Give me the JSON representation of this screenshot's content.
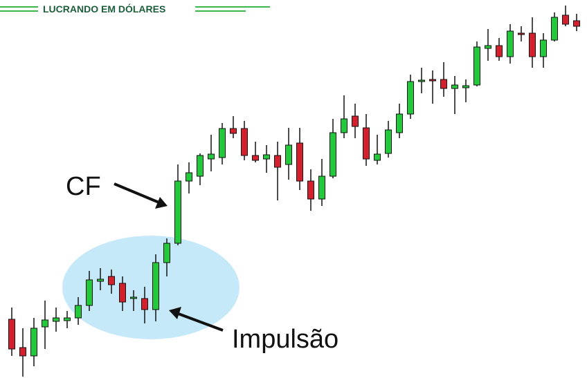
{
  "brand": "LUCRANDO EM DÓLARES",
  "annotations": {
    "cf": "CF",
    "impulse": "Impulsão"
  },
  "chart_data": {
    "type": "candlestick",
    "up_color": "#22c93a",
    "down_color": "#d4202c",
    "ylim": [
      0,
      547
    ],
    "open": [
      85,
      44,
      32,
      74,
      82,
      83,
      87,
      105,
      140,
      147,
      137,
      115,
      115,
      99,
      167,
      195,
      285,
      292,
      317,
      319,
      361,
      361,
      322,
      317,
      322,
      309,
      340,
      285,
      259,
      292,
      355,
      379,
      362,
      315,
      325,
      355,
      382,
      429,
      432,
      432,
      419,
      420,
      424,
      477,
      481,
      465,
      499,
      499,
      465,
      489,
      525,
      517
    ],
    "high": [
      102,
      72,
      87,
      112,
      102,
      97,
      117,
      155,
      159,
      157,
      147,
      127,
      132,
      179,
      202,
      309,
      312,
      325,
      352,
      369,
      379,
      372,
      342,
      337,
      342,
      362,
      362,
      302,
      317,
      375,
      409,
      397,
      382,
      352,
      372,
      397,
      439,
      449,
      445,
      457,
      437,
      432,
      487,
      505,
      492,
      512,
      509,
      522,
      499,
      529,
      539,
      527
    ],
    "low": [
      32,
      2,
      17,
      42,
      67,
      72,
      77,
      97,
      127,
      122,
      97,
      97,
      79,
      82,
      147,
      192,
      267,
      279,
      299,
      309,
      347,
      315,
      312,
      297,
      257,
      287,
      272,
      242,
      249,
      289,
      347,
      347,
      307,
      309,
      319,
      347,
      375,
      412,
      397,
      407,
      382,
      399,
      422,
      459,
      459,
      455,
      487,
      449,
      449,
      487,
      509,
      502
    ],
    "close": [
      42,
      32,
      72,
      84,
      87,
      87,
      105,
      142,
      143,
      135,
      110,
      117,
      99,
      167,
      195,
      285,
      297,
      322,
      324,
      361,
      354,
      322,
      315,
      323,
      305,
      337,
      285,
      259,
      292,
      355,
      375,
      364,
      317,
      324,
      359,
      382,
      429,
      431,
      430,
      419,
      424,
      423,
      479,
      481,
      465,
      502,
      497,
      465,
      489,
      522,
      512,
      509
    ]
  }
}
